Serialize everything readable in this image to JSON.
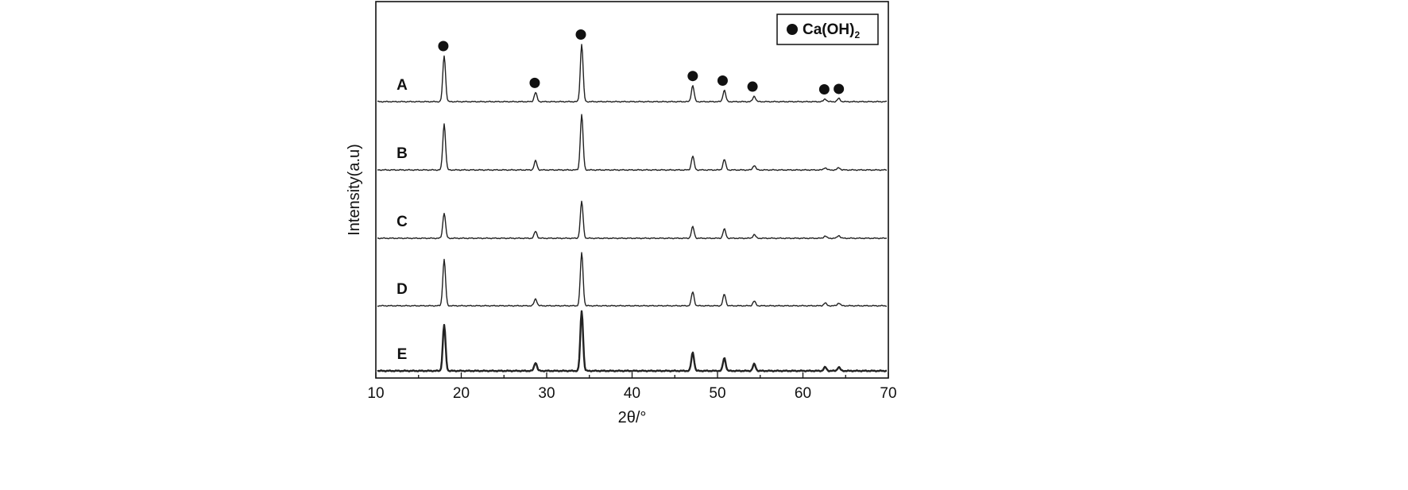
{
  "chart_data": {
    "type": "line",
    "title": "",
    "xlabel": "2θ/°",
    "ylabel": "Intensity(a.u)",
    "xlim": [
      10,
      70
    ],
    "x_ticks": [
      10,
      20,
      30,
      40,
      50,
      60,
      70
    ],
    "grid": false,
    "legend": {
      "position": "top-right",
      "marker": "filled-circle",
      "label_main": "Ca(OH)",
      "label_sub": "2"
    },
    "peaks": [
      {
        "x": 18.0,
        "A": 1.0,
        "B": 1.0,
        "C": 0.55,
        "D": 1.0,
        "E": 1.0
      },
      {
        "x": 28.7,
        "A": 0.2,
        "B": 0.2,
        "C": 0.15,
        "D": 0.15,
        "E": 0.18
      },
      {
        "x": 34.1,
        "A": 1.25,
        "B": 1.2,
        "C": 0.8,
        "D": 1.15,
        "E": 1.3
      },
      {
        "x": 47.1,
        "A": 0.35,
        "B": 0.3,
        "C": 0.25,
        "D": 0.3,
        "E": 0.4
      },
      {
        "x": 50.8,
        "A": 0.25,
        "B": 0.23,
        "C": 0.2,
        "D": 0.25,
        "E": 0.28
      },
      {
        "x": 54.3,
        "A": 0.12,
        "B": 0.1,
        "C": 0.08,
        "D": 0.1,
        "E": 0.15
      },
      {
        "x": 62.6,
        "A": 0.06,
        "B": 0.05,
        "C": 0.05,
        "D": 0.06,
        "E": 0.08
      },
      {
        "x": 64.2,
        "A": 0.07,
        "B": 0.05,
        "C": 0.06,
        "D": 0.06,
        "E": 0.08
      }
    ],
    "series": [
      {
        "name": "A"
      },
      {
        "name": "B"
      },
      {
        "name": "C"
      },
      {
        "name": "D"
      },
      {
        "name": "E"
      }
    ],
    "markers": [
      {
        "x": 17.9,
        "series": "A"
      },
      {
        "x": 28.6,
        "series": "A"
      },
      {
        "x": 34.0,
        "series": "A"
      },
      {
        "x": 47.1,
        "series": "A"
      },
      {
        "x": 50.6,
        "series": "A"
      },
      {
        "x": 54.1,
        "series": "A"
      },
      {
        "x": 62.5,
        "series": "A"
      },
      {
        "x": 64.2,
        "series": "A"
      }
    ]
  }
}
